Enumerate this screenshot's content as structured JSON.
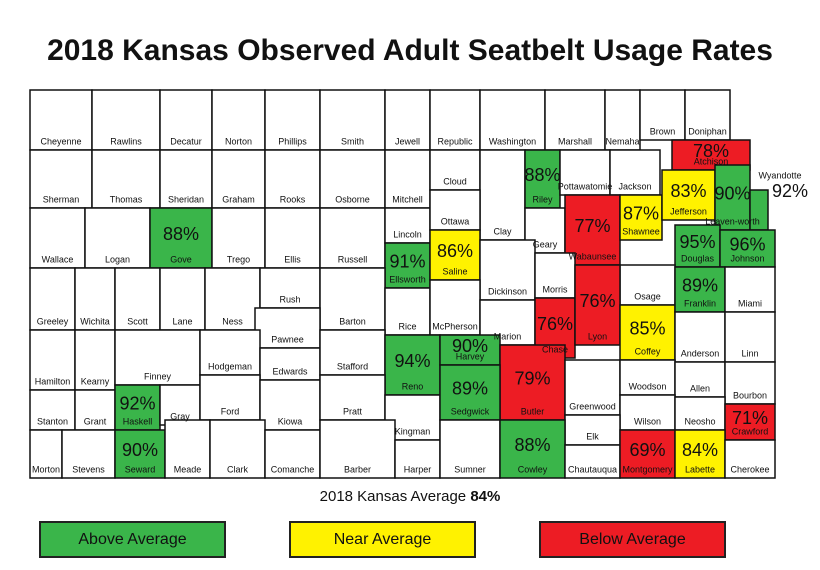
{
  "title": "2018 Kansas Observed Adult Seatbelt Usage Rates",
  "counties": [
    {
      "name": "Cheyenne"
    },
    {
      "name": "Rawlins"
    },
    {
      "name": "Decatur"
    },
    {
      "name": "Norton"
    },
    {
      "name": "Phillips"
    },
    {
      "name": "Smith"
    },
    {
      "name": "Jewell"
    },
    {
      "name": "Republic"
    },
    {
      "name": "Washington"
    },
    {
      "name": "Marshall"
    },
    {
      "name": "Nemaha"
    },
    {
      "name": "Brown"
    },
    {
      "name": "Doniphan"
    },
    {
      "name": "Sherman"
    },
    {
      "name": "Thomas"
    },
    {
      "name": "Sheridan"
    },
    {
      "name": "Graham"
    },
    {
      "name": "Rooks"
    },
    {
      "name": "Osborne"
    },
    {
      "name": "Mitchell"
    },
    {
      "name": "Cloud"
    },
    {
      "name": "Clay"
    },
    {
      "name": "Riley",
      "rate": "88%",
      "color": "#3ab54a"
    },
    {
      "name": "Pottawatomie"
    },
    {
      "name": "Jackson"
    },
    {
      "name": "Atchison",
      "rate": "78%",
      "color": "#ed1c24"
    },
    {
      "name": "Wallace"
    },
    {
      "name": "Logan"
    },
    {
      "name": "Gove",
      "rate": "88%",
      "color": "#3ab54a"
    },
    {
      "name": "Trego"
    },
    {
      "name": "Ellis"
    },
    {
      "name": "Russell"
    },
    {
      "name": "Lincoln"
    },
    {
      "name": "Ottawa"
    },
    {
      "name": "Geary"
    },
    {
      "name": "Wabaunsee",
      "rate": "77%",
      "color": "#ed1c24"
    },
    {
      "name": "Shawnee",
      "rate": "87%",
      "color": "#fff200"
    },
    {
      "name": "Jefferson",
      "rate": "83%",
      "color": "#fff200"
    },
    {
      "name": "Leaven-worth",
      "rate": "90%",
      "color": "#3ab54a"
    },
    {
      "name": "Wyandotte",
      "rate": "92%",
      "color": "#3ab54a"
    },
    {
      "name": "Ellsworth",
      "rate": "91%",
      "color": "#3ab54a"
    },
    {
      "name": "Saline",
      "rate": "86%",
      "color": "#fff200"
    },
    {
      "name": "Dickinson"
    },
    {
      "name": "Douglas",
      "rate": "95%",
      "color": "#3ab54a"
    },
    {
      "name": "Johnson",
      "rate": "96%",
      "color": "#3ab54a"
    },
    {
      "name": "Osage"
    },
    {
      "name": "Morris"
    },
    {
      "name": "Greeley"
    },
    {
      "name": "Wichita"
    },
    {
      "name": "Scott"
    },
    {
      "name": "Lane"
    },
    {
      "name": "Ness"
    },
    {
      "name": "Rush"
    },
    {
      "name": "Barton"
    },
    {
      "name": "Rice"
    },
    {
      "name": "McPherson"
    },
    {
      "name": "Marion"
    },
    {
      "name": "Chase",
      "rate": "76%",
      "color": "#ed1c24"
    },
    {
      "name": "Lyon",
      "rate": "76%",
      "color": "#ed1c24"
    },
    {
      "name": "Coffey",
      "rate": "85%",
      "color": "#fff200"
    },
    {
      "name": "Franklin",
      "rate": "89%",
      "color": "#3ab54a"
    },
    {
      "name": "Miami"
    },
    {
      "name": "Pawnee"
    },
    {
      "name": "Hamilton"
    },
    {
      "name": "Kearny"
    },
    {
      "name": "Finney"
    },
    {
      "name": "Hodgeman"
    },
    {
      "name": "Edwards"
    },
    {
      "name": "Stafford"
    },
    {
      "name": "Reno",
      "rate": "94%",
      "color": "#3ab54a"
    },
    {
      "name": "Harvey",
      "rate": "90%",
      "color": "#3ab54a"
    },
    {
      "name": "Butler",
      "rate": "79%",
      "color": "#ed1c24"
    },
    {
      "name": "Anderson"
    },
    {
      "name": "Linn"
    },
    {
      "name": "Greenwood"
    },
    {
      "name": "Woodson"
    },
    {
      "name": "Allen"
    },
    {
      "name": "Bourbon"
    },
    {
      "name": "Stanton"
    },
    {
      "name": "Grant"
    },
    {
      "name": "Haskell",
      "rate": "92%",
      "color": "#3ab54a"
    },
    {
      "name": "Gray"
    },
    {
      "name": "Ford"
    },
    {
      "name": "Kiowa"
    },
    {
      "name": "Pratt"
    },
    {
      "name": "Kingman"
    },
    {
      "name": "Sedgwick",
      "rate": "89%",
      "color": "#3ab54a"
    },
    {
      "name": "Wilson"
    },
    {
      "name": "Neosho"
    },
    {
      "name": "Crawford",
      "rate": "71%",
      "color": "#ed1c24"
    },
    {
      "name": "Elk"
    },
    {
      "name": "Morton"
    },
    {
      "name": "Stevens"
    },
    {
      "name": "Seward",
      "rate": "90%",
      "color": "#3ab54a"
    },
    {
      "name": "Meade"
    },
    {
      "name": "Clark"
    },
    {
      "name": "Comanche"
    },
    {
      "name": "Barber"
    },
    {
      "name": "Harper"
    },
    {
      "name": "Sumner"
    },
    {
      "name": "Cowley",
      "rate": "88%",
      "color": "#3ab54a"
    },
    {
      "name": "Chautauqua"
    },
    {
      "name": "Montgomery",
      "rate": "69%",
      "color": "#ed1c24"
    },
    {
      "name": "Labette",
      "rate": "84%",
      "color": "#fff200"
    },
    {
      "name": "Cherokee"
    }
  ],
  "average": {
    "label": "2018 Kansas Average",
    "value": "84%"
  },
  "legend": [
    {
      "label": "Above Average",
      "color": "#3ab54a"
    },
    {
      "label": "Near Average",
      "color": "#fff200"
    },
    {
      "label": "Below Average",
      "color": "#ed1c24"
    }
  ]
}
